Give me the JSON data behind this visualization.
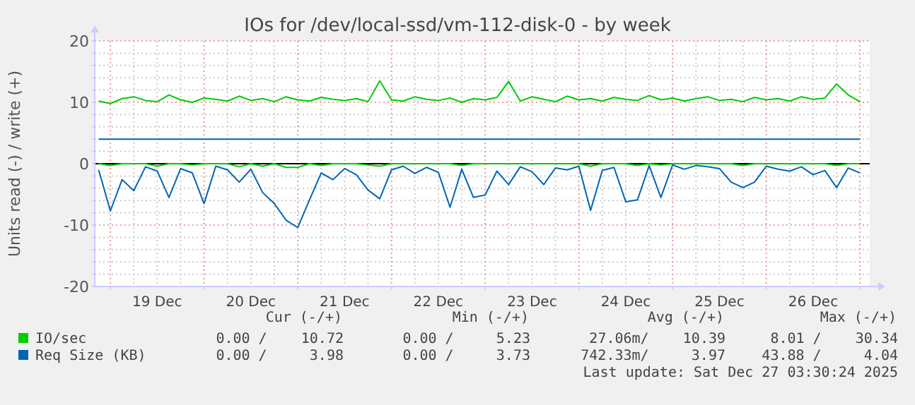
{
  "chart_data": {
    "type": "line",
    "title": "IOs for /dev/local-ssd/vm-112-disk-0 - by week",
    "ylabel": "Units read (-) / write (+)",
    "x": [
      "2025-12-18T21:00",
      "2025-12-19T00:00",
      "2025-12-19T03:00",
      "2025-12-19T06:00",
      "2025-12-19T09:00",
      "2025-12-19T12:00",
      "2025-12-19T15:00",
      "2025-12-19T18:00",
      "2025-12-19T21:00",
      "2025-12-20T00:00",
      "2025-12-20T03:00",
      "2025-12-20T06:00",
      "2025-12-20T09:00",
      "2025-12-20T12:00",
      "2025-12-20T15:00",
      "2025-12-20T18:00",
      "2025-12-20T21:00",
      "2025-12-21T00:00",
      "2025-12-21T03:00",
      "2025-12-21T06:00",
      "2025-12-21T09:00",
      "2025-12-21T12:00",
      "2025-12-21T15:00",
      "2025-12-21T18:00",
      "2025-12-21T21:00",
      "2025-12-22T00:00",
      "2025-12-22T03:00",
      "2025-12-22T06:00",
      "2025-12-22T09:00",
      "2025-12-22T12:00",
      "2025-12-22T15:00",
      "2025-12-22T18:00",
      "2025-12-22T21:00",
      "2025-12-23T00:00",
      "2025-12-23T03:00",
      "2025-12-23T06:00",
      "2025-12-23T09:00",
      "2025-12-23T12:00",
      "2025-12-23T15:00",
      "2025-12-23T18:00",
      "2025-12-23T21:00",
      "2025-12-24T00:00",
      "2025-12-24T03:00",
      "2025-12-24T06:00",
      "2025-12-24T09:00",
      "2025-12-24T12:00",
      "2025-12-24T15:00",
      "2025-12-24T18:00",
      "2025-12-24T21:00",
      "2025-12-25T00:00",
      "2025-12-25T03:00",
      "2025-12-25T06:00",
      "2025-12-25T09:00",
      "2025-12-25T12:00",
      "2025-12-25T15:00",
      "2025-12-25T18:00",
      "2025-12-25T21:00",
      "2025-12-26T00:00",
      "2025-12-26T03:00",
      "2025-12-26T06:00",
      "2025-12-26T09:00",
      "2025-12-26T12:00",
      "2025-12-26T15:00",
      "2025-12-26T18:00",
      "2025-12-26T21:00",
      "2025-12-27T00:00"
    ],
    "series": [
      {
        "name": "IO/sec",
        "color": "#00cc00",
        "values": [
          10.2,
          9.8,
          10.6,
          10.9,
          10.3,
          10.1,
          11.2,
          10.4,
          10.0,
          10.7,
          10.5,
          10.2,
          11.0,
          10.3,
          10.6,
          10.1,
          10.9,
          10.4,
          10.2,
          10.8,
          10.5,
          10.3,
          10.6,
          10.1,
          13.5,
          10.4,
          10.2,
          10.9,
          10.5,
          10.3,
          10.7,
          10.0,
          10.6,
          10.4,
          10.8,
          13.4,
          10.2,
          10.9,
          10.5,
          10.1,
          11.0,
          10.4,
          10.6,
          10.2,
          10.8,
          10.5,
          10.3,
          11.1,
          10.4,
          10.7,
          10.2,
          10.6,
          10.9,
          10.3,
          10.5,
          10.1,
          10.8,
          10.4,
          10.6,
          10.2,
          10.9,
          10.5,
          10.7,
          13.0,
          11.2,
          10.1
        ]
      },
      {
        "name": "Req Size (KB)",
        "color": "#0066b3",
        "values": [
          4,
          4,
          4,
          4,
          4,
          4,
          4,
          4,
          4,
          4,
          4,
          4,
          4,
          4,
          4,
          4,
          4,
          4,
          4,
          4,
          4,
          4,
          4,
          4,
          4,
          4,
          4,
          4,
          4,
          4,
          4,
          4,
          4,
          4,
          4,
          4,
          4,
          4,
          4,
          4,
          4,
          4,
          4,
          4,
          4,
          4,
          4,
          4,
          4,
          4,
          4,
          4,
          4,
          4,
          4,
          4,
          4,
          4,
          4,
          4,
          4,
          4,
          4,
          4,
          4,
          4
        ]
      },
      {
        "color": "#00cc00",
        "values": [
          0,
          -0.3,
          0,
          0,
          0,
          -0.4,
          0,
          0,
          -0.2,
          0,
          0,
          0,
          -0.5,
          0,
          -0.4,
          0,
          -0.6,
          -0.6,
          0,
          -0.3,
          0,
          0,
          0,
          -0.2,
          -0.4,
          0,
          0,
          0,
          0,
          0,
          0,
          -0.3,
          0,
          0,
          0,
          0,
          0,
          0,
          0,
          0,
          0,
          0,
          -0.4,
          0,
          0,
          0,
          -0.3,
          0,
          -0.2,
          0,
          0,
          0,
          0,
          0,
          0,
          -0.3,
          0,
          0,
          0,
          0,
          0,
          0,
          0,
          -0.3,
          0,
          0
        ]
      },
      {
        "color": "#0066b3",
        "values": [
          -1.0,
          -7.7,
          -2.6,
          -4.4,
          -0.5,
          -1.2,
          -5.5,
          -0.8,
          -1.5,
          -6.5,
          -0.4,
          -1.0,
          -3.0,
          -0.9,
          -4.7,
          -6.5,
          -9.2,
          -10.4,
          -5.9,
          -1.5,
          -2.6,
          -0.8,
          -1.8,
          -4.3,
          -5.7,
          -1.0,
          -0.4,
          -1.6,
          -0.6,
          -1.4,
          -7.1,
          -0.9,
          -5.5,
          -5.1,
          -1.2,
          -3.4,
          -0.5,
          -1.3,
          -3.4,
          -0.7,
          -1.0,
          -0.4,
          -7.6,
          -1.1,
          -0.6,
          -6.2,
          -5.9,
          -0.3,
          -5.5,
          -0.2,
          -0.9,
          -0.3,
          -0.5,
          -0.8,
          -3.0,
          -3.9,
          -3.0,
          -0.4,
          -0.9,
          -1.2,
          -0.5,
          -1.8,
          -1.1,
          -3.9,
          -0.7,
          -1.5
        ]
      }
    ],
    "xlim": [
      "2025-12-18T20:00",
      "2025-12-27T02:30"
    ],
    "xticks": [
      {
        "value": "2025-12-19T00:00",
        "label": null
      },
      {
        "value": "2025-12-19T12:00",
        "label": "19 Dec"
      },
      {
        "value": "2025-12-20T00:00",
        "label": null
      },
      {
        "value": "2025-12-20T12:00",
        "label": "20 Dec"
      },
      {
        "value": "2025-12-21T00:00",
        "label": null
      },
      {
        "value": "2025-12-21T12:00",
        "label": "21 Dec"
      },
      {
        "value": "2025-12-22T00:00",
        "label": null
      },
      {
        "value": "2025-12-22T12:00",
        "label": "22 Dec"
      },
      {
        "value": "2025-12-23T00:00",
        "label": null
      },
      {
        "value": "2025-12-23T12:00",
        "label": "23 Dec"
      },
      {
        "value": "2025-12-24T00:00",
        "label": null
      },
      {
        "value": "2025-12-24T12:00",
        "label": "24 Dec"
      },
      {
        "value": "2025-12-25T00:00",
        "label": null
      },
      {
        "value": "2025-12-25T12:00",
        "label": "25 Dec"
      },
      {
        "value": "2025-12-26T00:00",
        "label": null
      },
      {
        "value": "2025-12-26T12:00",
        "label": "26 Dec"
      },
      {
        "value": "2025-12-27T00:00",
        "label": null
      }
    ],
    "ylim": [
      -20,
      20
    ],
    "yticks": [
      -20,
      {
        "value": -18,
        "label": null
      },
      {
        "value": -16,
        "label": null
      },
      {
        "value": -14,
        "label": null
      },
      {
        "value": -12,
        "label": null
      },
      -10,
      {
        "value": -8,
        "label": null
      },
      {
        "value": -6,
        "label": null
      },
      {
        "value": -4,
        "label": null
      },
      {
        "value": -2,
        "label": null
      },
      0,
      {
        "value": 2,
        "label": null
      },
      {
        "value": 4,
        "label": null
      },
      {
        "value": 6,
        "label": null
      },
      {
        "value": 8,
        "label": null
      },
      10,
      {
        "value": 12,
        "label": null
      },
      {
        "value": 14,
        "label": null
      },
      {
        "value": 16,
        "label": null
      },
      {
        "value": 18,
        "label": null
      },
      20
    ],
    "grid": true,
    "legend": "bottom",
    "annotations": [
      "Cur (-/+)",
      "Min (-/+)",
      "Avg (-/+)",
      "Max (-/+)",
      "0.00 /    10.72",
      "0.00 /     5.23",
      "27.06m/    10.39",
      "8.01 /    30.34",
      "0.00 /     3.98",
      "0.00 /     3.73",
      "742.33m/     3.97",
      "43.88 /     4.04",
      "Last update: Sat Dec 27 03:30:24 2025"
    ]
  }
}
